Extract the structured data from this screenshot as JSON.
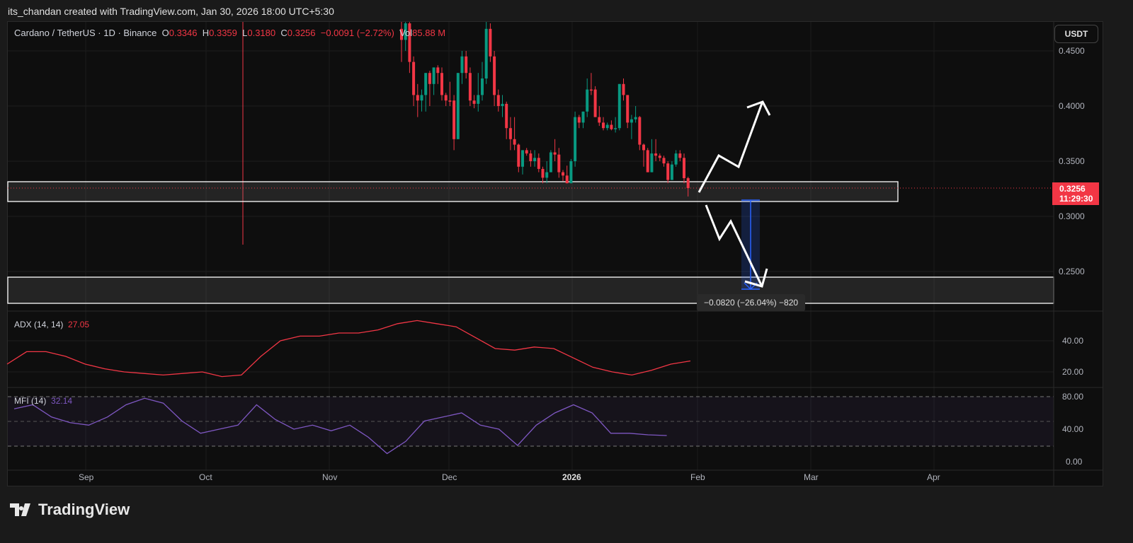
{
  "caption": "its_chandan created with TradingView.com, Jan 30, 2026 18:00 UTC+5:30",
  "legend": {
    "symbol": "Cardano / TetherUS · 1D · Binance",
    "o_label": "O",
    "o": "0.3346",
    "h_label": "H",
    "h": "0.3359",
    "l_label": "L",
    "l": "0.3180",
    "c_label": "C",
    "c": "0.3256",
    "change": "−0.0091 (−2.72%)",
    "vol_label": "Vol",
    "vol": "85.88 M"
  },
  "currency": "USDT",
  "price_axis": [
    "0.4500",
    "0.4000",
    "0.3500",
    "0.3000",
    "0.2500"
  ],
  "last_price": {
    "value": "0.3256",
    "countdown": "11:29:30"
  },
  "time_axis": [
    "Sep",
    "Oct",
    "Nov",
    "Dec",
    "2026",
    "Feb",
    "Mar",
    "Apr"
  ],
  "adx": {
    "label": "ADX (14, 14)",
    "value": "27.05",
    "axis": [
      "40.00",
      "20.00"
    ]
  },
  "mfi": {
    "label": "MFI (14)",
    "value": "32.14",
    "axis": [
      "80.00",
      "40.00",
      "0.00"
    ]
  },
  "measure": {
    "label": "−0.0820 (−26.04%) −820"
  },
  "brand": "TradingView",
  "colors": {
    "up": "#089981",
    "down": "#f23645",
    "adx": "#f23645",
    "mfi": "#7e57c2",
    "measure": "#2962ff"
  },
  "chart_data": {
    "type": "candlestick",
    "title": "Cardano / TetherUS · 1D · Binance",
    "ylim": [
      0.22,
      0.48
    ],
    "candles_ohlc": [
      [
        0.47,
        0.48,
        0.44,
        0.46
      ],
      [
        0.46,
        0.48,
        0.45,
        0.475
      ],
      [
        0.475,
        0.48,
        0.43,
        0.44
      ],
      [
        0.44,
        0.445,
        0.4,
        0.41
      ],
      [
        0.41,
        0.42,
        0.39,
        0.405
      ],
      [
        0.405,
        0.415,
        0.395,
        0.41
      ],
      [
        0.41,
        0.43,
        0.395,
        0.43
      ],
      [
        0.43,
        0.432,
        0.4,
        0.42
      ],
      [
        0.42,
        0.435,
        0.41,
        0.435
      ],
      [
        0.435,
        0.437,
        0.42,
        0.43
      ],
      [
        0.43,
        0.435,
        0.405,
        0.41
      ],
      [
        0.41,
        0.412,
        0.4,
        0.405
      ],
      [
        0.405,
        0.422,
        0.4,
        0.404
      ],
      [
        0.405,
        0.41,
        0.36,
        0.37
      ],
      [
        0.37,
        0.43,
        0.37,
        0.43
      ],
      [
        0.43,
        0.45,
        0.42,
        0.445
      ],
      [
        0.445,
        0.45,
        0.425,
        0.43
      ],
      [
        0.43,
        0.435,
        0.4,
        0.405
      ],
      [
        0.405,
        0.41,
        0.398,
        0.402
      ],
      [
        0.402,
        0.43,
        0.395,
        0.41
      ],
      [
        0.41,
        0.44,
        0.405,
        0.425
      ],
      [
        0.425,
        0.48,
        0.42,
        0.47
      ],
      [
        0.47,
        0.475,
        0.44,
        0.445
      ],
      [
        0.445,
        0.45,
        0.4,
        0.41
      ],
      [
        0.41,
        0.415,
        0.395,
        0.4
      ],
      [
        0.4,
        0.41,
        0.39,
        0.402
      ],
      [
        0.402,
        0.404,
        0.37,
        0.38
      ],
      [
        0.38,
        0.39,
        0.36,
        0.37
      ],
      [
        0.37,
        0.39,
        0.36,
        0.365
      ],
      [
        0.365,
        0.366,
        0.34,
        0.345
      ],
      [
        0.345,
        0.36,
        0.338,
        0.36
      ],
      [
        0.36,
        0.362,
        0.355,
        0.357
      ],
      [
        0.357,
        0.36,
        0.345,
        0.35
      ],
      [
        0.35,
        0.36,
        0.345,
        0.353
      ],
      [
        0.353,
        0.357,
        0.34,
        0.343
      ],
      [
        0.343,
        0.345,
        0.33,
        0.335
      ],
      [
        0.335,
        0.35,
        0.33,
        0.34
      ],
      [
        0.34,
        0.36,
        0.34,
        0.358
      ],
      [
        0.358,
        0.37,
        0.35,
        0.356
      ],
      [
        0.356,
        0.362,
        0.335,
        0.34
      ],
      [
        0.34,
        0.342,
        0.332,
        0.337
      ],
      [
        0.337,
        0.346,
        0.33,
        0.33
      ],
      [
        0.33,
        0.352,
        0.33,
        0.35
      ],
      [
        0.35,
        0.395,
        0.345,
        0.39
      ],
      [
        0.39,
        0.392,
        0.38,
        0.385
      ],
      [
        0.385,
        0.395,
        0.38,
        0.395
      ],
      [
        0.395,
        0.425,
        0.39,
        0.415
      ],
      [
        0.415,
        0.43,
        0.41,
        0.414
      ],
      [
        0.415,
        0.418,
        0.39,
        0.39
      ],
      [
        0.39,
        0.4,
        0.382,
        0.385
      ],
      [
        0.385,
        0.39,
        0.378,
        0.38
      ],
      [
        0.38,
        0.385,
        0.378,
        0.383
      ],
      [
        0.383,
        0.387,
        0.378,
        0.379
      ],
      [
        0.379,
        0.39,
        0.376,
        0.38
      ],
      [
        0.38,
        0.42,
        0.378,
        0.42
      ],
      [
        0.42,
        0.425,
        0.405,
        0.41
      ],
      [
        0.41,
        0.41,
        0.38,
        0.385
      ],
      [
        0.385,
        0.392,
        0.37,
        0.388
      ],
      [
        0.388,
        0.4,
        0.385,
        0.39
      ],
      [
        0.39,
        0.391,
        0.36,
        0.365
      ],
      [
        0.365,
        0.366,
        0.345,
        0.36
      ],
      [
        0.36,
        0.362,
        0.34,
        0.34
      ],
      [
        0.34,
        0.37,
        0.34,
        0.357
      ],
      [
        0.357,
        0.37,
        0.35,
        0.355
      ],
      [
        0.355,
        0.357,
        0.35,
        0.353
      ],
      [
        0.353,
        0.355,
        0.345,
        0.348
      ],
      [
        0.348,
        0.35,
        0.33,
        0.333
      ],
      [
        0.333,
        0.35,
        0.333,
        0.347
      ],
      [
        0.347,
        0.36,
        0.345,
        0.357
      ],
      [
        0.357,
        0.36,
        0.35,
        0.353
      ],
      [
        0.353,
        0.357,
        0.33,
        0.3346
      ],
      [
        0.3346,
        0.3359,
        0.318,
        0.3256
      ]
    ],
    "zones": [
      [
        0.3156,
        0.334
      ],
      [
        0.2165,
        0.2405
      ]
    ],
    "adx_series": [
      25,
      33,
      33,
      30,
      25,
      22,
      20,
      19,
      18,
      19,
      20,
      17,
      18,
      30,
      40,
      43,
      43,
      45,
      45,
      47,
      51,
      53,
      51,
      49,
      42,
      35,
      34,
      36,
      35,
      29,
      23,
      20,
      18,
      21,
      25,
      27.05
    ],
    "mfi_series": [
      65,
      70,
      55,
      48,
      45,
      55,
      70,
      78,
      72,
      50,
      35,
      40,
      45,
      70,
      52,
      40,
      45,
      38,
      45,
      30,
      10,
      25,
      50,
      55,
      60,
      45,
      40,
      20,
      45,
      60,
      70,
      60,
      35,
      35,
      33,
      32.14
    ]
  }
}
